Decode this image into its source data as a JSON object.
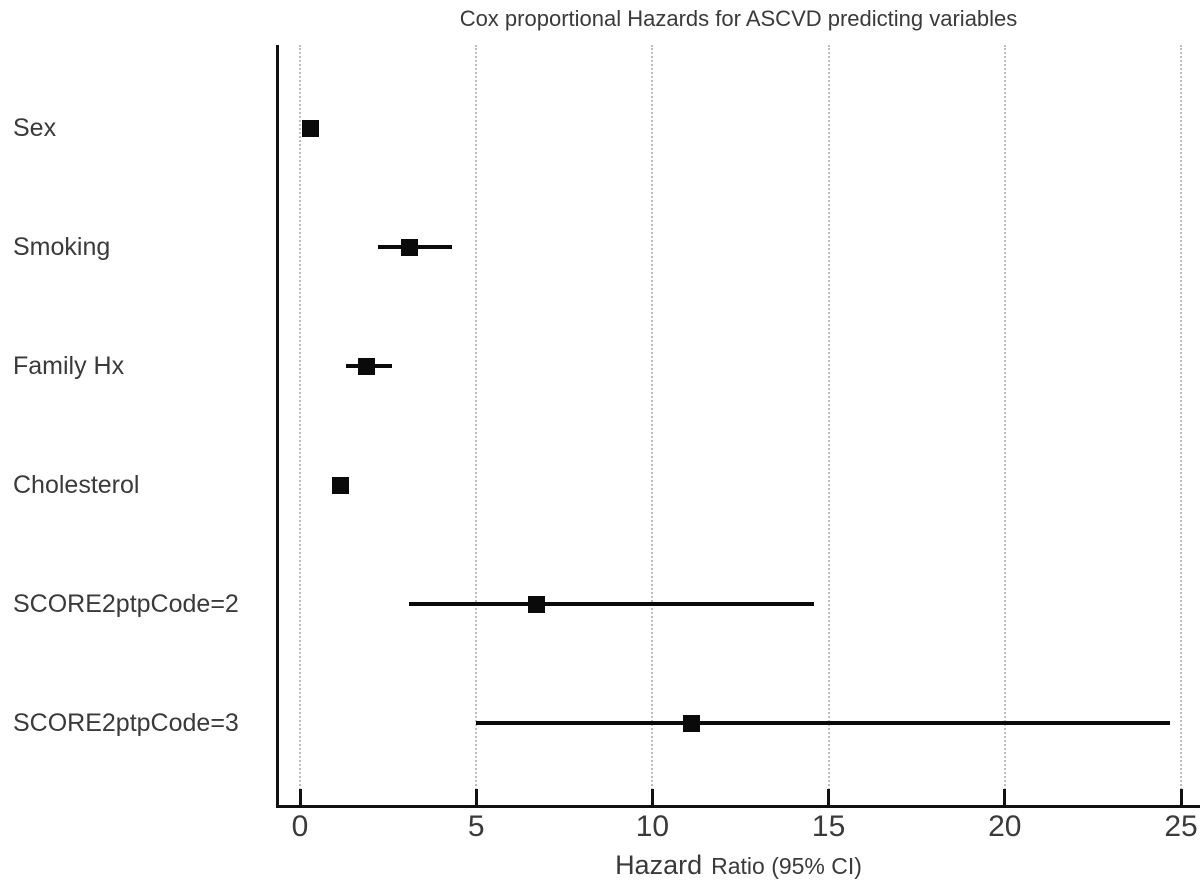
{
  "chart_data": {
    "type": "scatter",
    "variant": "forest-plot",
    "title": "Cox proportional Hazards for ASCVD predicting variables",
    "xlabel_primary": "Hazard",
    "xlabel_secondary": "Ratio (95% CI)",
    "xlim": [
      -0.7,
      25.5
    ],
    "x_ticks": [
      0,
      5,
      10,
      15,
      20,
      25
    ],
    "grid": "vertical dotted gridlines at each x tick",
    "legend": "none",
    "rows": [
      {
        "label": "Sex",
        "hr": 0.3,
        "ci_low": 0.1,
        "ci_high": 0.5
      },
      {
        "label": "Smoking",
        "hr": 3.1,
        "ci_low": 2.2,
        "ci_high": 4.3
      },
      {
        "label": "Family Hx",
        "hr": 1.9,
        "ci_low": 1.3,
        "ci_high": 2.6
      },
      {
        "label": "Cholesterol",
        "hr": 1.15,
        "ci_low": 1.0,
        "ci_high": 1.3
      },
      {
        "label": "SCORE2ptpCode=2",
        "hr": 6.7,
        "ci_low": 3.1,
        "ci_high": 14.6
      },
      {
        "label": "SCORE2ptpCode=3",
        "hr": 11.1,
        "ci_low": 5.0,
        "ci_high": 24.7
      }
    ],
    "colors": {
      "marker": "#0a0a0a",
      "ci_line": "#0a0a0a",
      "axis": "#111111",
      "gridline": "#bdbdbd",
      "text": "#3a3a3a"
    }
  }
}
